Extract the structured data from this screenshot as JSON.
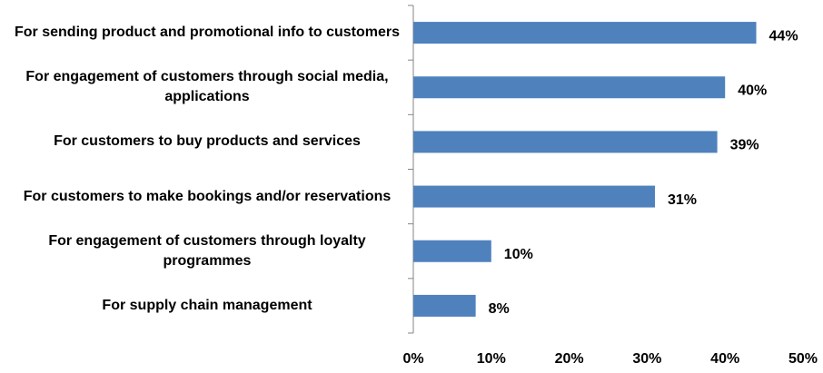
{
  "chart_data": {
    "type": "bar",
    "orientation": "horizontal",
    "categories": [
      "For sending product and promotional info to customers",
      "For engagement of customers through social media, applications",
      "For customers to buy products and services",
      "For customers to make bookings and/or reservations",
      "For engagement of customers through loyalty programmes",
      "For supply chain management"
    ],
    "values": [
      44,
      40,
      39,
      31,
      10,
      8
    ],
    "value_labels": [
      "44%",
      "40%",
      "39%",
      "31%",
      "10%",
      "8%"
    ],
    "color": "#4f81bd",
    "xlim": [
      0,
      50
    ],
    "xticks": [
      {
        "value": 0,
        "label": "0%"
      },
      {
        "value": 10,
        "label": "10%"
      },
      {
        "value": 20,
        "label": "20%"
      },
      {
        "value": 30,
        "label": "30%"
      },
      {
        "value": 40,
        "label": "40%"
      },
      {
        "value": 50,
        "label": "50%"
      }
    ]
  }
}
